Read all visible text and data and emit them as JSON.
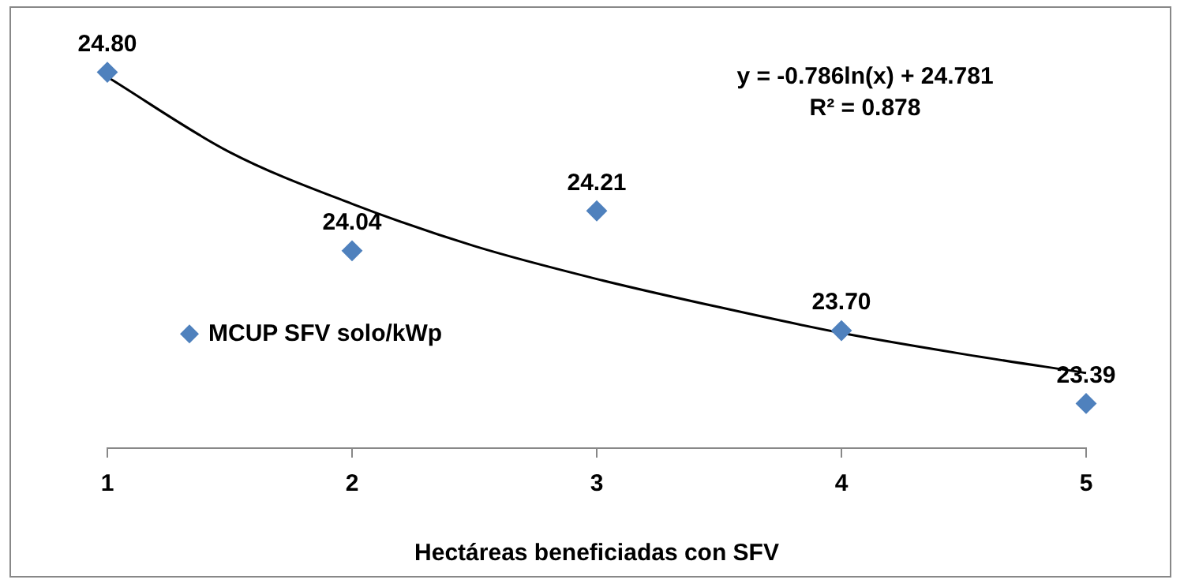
{
  "chart_data": {
    "type": "scatter",
    "xlabel": "Hectáreas beneficiadas con SFV",
    "annotations": [
      "y = -0.786ln(x) + 24.781",
      "R² = 0.878"
    ],
    "x": [
      1,
      2,
      3,
      4,
      5
    ],
    "xlim": [
      1,
      5
    ],
    "xticks": [
      1,
      2,
      3,
      4,
      5
    ],
    "tick_labels": "x",
    "grid": false,
    "legend": "left",
    "series": [
      {
        "name": "MCUP SFV solo/kWp",
        "color": "#4f81bd",
        "marker": "diamond",
        "values": [
          24.8,
          24.04,
          24.21,
          23.7,
          23.39
        ],
        "value_labels": [
          "24.80",
          "24.04",
          "24.21",
          "23.70",
          "23.39"
        ]
      },
      {
        "type": "line",
        "color": "#000000",
        "x": [
          1,
          1.5,
          2,
          2.5,
          3,
          3.5,
          4,
          4.5,
          5
        ],
        "values": [
          24.78,
          24.46,
          24.24,
          24.06,
          23.92,
          23.8,
          23.69,
          23.6,
          23.52
        ]
      }
    ]
  }
}
